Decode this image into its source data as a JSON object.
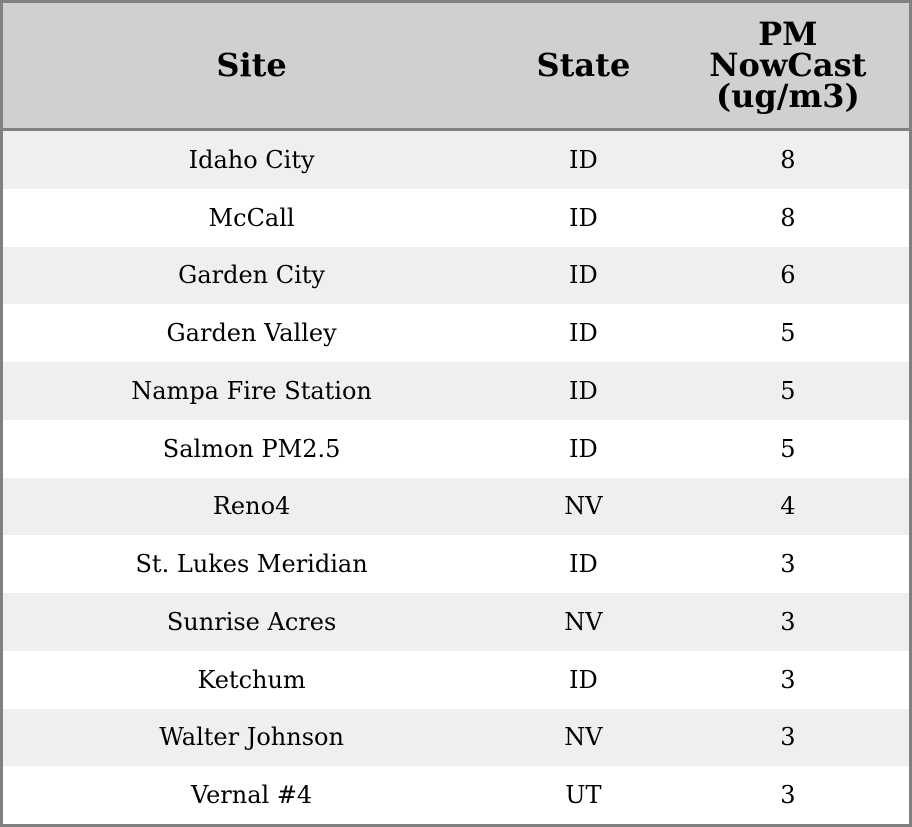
{
  "table": {
    "headers": [
      "Site",
      "State",
      "PM NowCast (ug/m3)"
    ],
    "header_lines": {
      "pm": [
        "PM",
        "NowCast",
        "(ug/m3)"
      ]
    },
    "rows": [
      {
        "site": "Idaho City",
        "state": "ID",
        "pm": "8"
      },
      {
        "site": "McCall",
        "state": "ID",
        "pm": "8"
      },
      {
        "site": "Garden City",
        "state": "ID",
        "pm": "6"
      },
      {
        "site": "Garden Valley",
        "state": "ID",
        "pm": "5"
      },
      {
        "site": "Nampa Fire Station",
        "state": "ID",
        "pm": "5"
      },
      {
        "site": "Salmon PM2.5",
        "state": "ID",
        "pm": "5"
      },
      {
        "site": "Reno4",
        "state": "NV",
        "pm": "4"
      },
      {
        "site": "St. Lukes Meridian",
        "state": "ID",
        "pm": "3"
      },
      {
        "site": "Sunrise Acres",
        "state": "NV",
        "pm": "3"
      },
      {
        "site": "Ketchum",
        "state": "ID",
        "pm": "3"
      },
      {
        "site": "Walter Johnson",
        "state": "NV",
        "pm": "3"
      },
      {
        "site": "Vernal #4",
        "state": "UT",
        "pm": "3"
      }
    ]
  },
  "colors": {
    "header_bg": "#d0d0d0",
    "stripe": "#efefef",
    "border": "#808080"
  }
}
